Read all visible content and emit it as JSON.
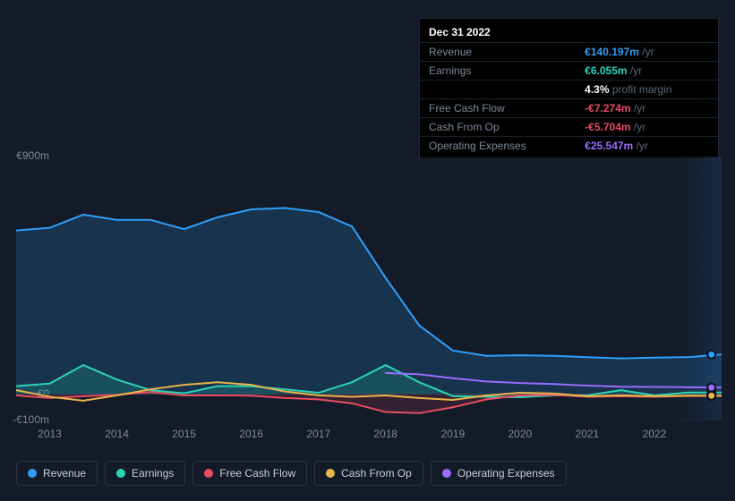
{
  "tooltip": {
    "date": "Dec 31 2022",
    "rows": [
      {
        "label": "Revenue",
        "value": "€140.197m",
        "color": "#2f9ffa",
        "unit": "/yr"
      },
      {
        "label": "Earnings",
        "value": "€6.055m",
        "color": "#2bd4b5",
        "unit": "/yr"
      },
      {
        "label": "",
        "value": "4.3%",
        "color": "#ffffff",
        "unit": "profit margin"
      },
      {
        "label": "Free Cash Flow",
        "value": "-€7.274m",
        "color": "#e84d63",
        "unit": "/yr"
      },
      {
        "label": "Cash From Op",
        "value": "-€5.704m",
        "color": "#e84d63",
        "unit": "/yr"
      },
      {
        "label": "Operating Expenses",
        "value": "€25.547m",
        "color": "#9a6cff",
        "unit": "/yr"
      }
    ]
  },
  "chart": {
    "type": "area-line",
    "background_color": "#131b28",
    "axis_color": "#1e2a3a",
    "text_color": "#7d8a9a",
    "y": {
      "min": -100,
      "max": 900,
      "labels": [
        {
          "v": 900,
          "text": "€900m"
        },
        {
          "v": 0,
          "text": "€0"
        },
        {
          "v": -100,
          "text": "-€100m"
        }
      ]
    },
    "x": {
      "min": 2012.5,
      "max": 2023,
      "ticks": [
        2013,
        2014,
        2015,
        2016,
        2017,
        2018,
        2019,
        2020,
        2021,
        2022
      ]
    },
    "marker_x": 2022.85,
    "series": [
      {
        "name": "Revenue",
        "color": "#2f9ffa",
        "fill_opacity": 0.18,
        "fill_to_zero": true,
        "points": [
          [
            2012.5,
            620
          ],
          [
            2013,
            630
          ],
          [
            2013.5,
            680
          ],
          [
            2014,
            660
          ],
          [
            2014.5,
            660
          ],
          [
            2015,
            625
          ],
          [
            2015.5,
            670
          ],
          [
            2016,
            700
          ],
          [
            2016.5,
            705
          ],
          [
            2017,
            690
          ],
          [
            2017.5,
            635
          ],
          [
            2018,
            440
          ],
          [
            2018.5,
            260
          ],
          [
            2019,
            165
          ],
          [
            2019.5,
            145
          ],
          [
            2020,
            147
          ],
          [
            2020.5,
            145
          ],
          [
            2021,
            140
          ],
          [
            2021.5,
            135
          ],
          [
            2022,
            138
          ],
          [
            2022.5,
            140
          ],
          [
            2023,
            150
          ]
        ]
      },
      {
        "name": "Earnings",
        "color": "#2bd4b5",
        "fill_opacity": 0.18,
        "fill_to_zero": true,
        "points": [
          [
            2012.5,
            30
          ],
          [
            2013,
            40
          ],
          [
            2013.5,
            110
          ],
          [
            2014,
            55
          ],
          [
            2014.5,
            15
          ],
          [
            2015,
            3
          ],
          [
            2015.5,
            30
          ],
          [
            2016,
            30
          ],
          [
            2016.5,
            18
          ],
          [
            2017,
            5
          ],
          [
            2017.5,
            45
          ],
          [
            2018,
            110
          ],
          [
            2018.5,
            45
          ],
          [
            2019,
            -8
          ],
          [
            2019.5,
            -10
          ],
          [
            2020,
            -12
          ],
          [
            2020.5,
            -5
          ],
          [
            2021,
            -5
          ],
          [
            2021.5,
            15
          ],
          [
            2022,
            -5
          ],
          [
            2022.5,
            6
          ],
          [
            2023,
            6
          ]
        ]
      },
      {
        "name": "Free Cash Flow",
        "color": "#e84d63",
        "fill_opacity": 0.15,
        "fill_to_zero": true,
        "points": [
          [
            2012.5,
            -5
          ],
          [
            2013,
            -15
          ],
          [
            2013.5,
            -8
          ],
          [
            2014,
            -3
          ],
          [
            2014.5,
            8
          ],
          [
            2015,
            -5
          ],
          [
            2015.5,
            -5
          ],
          [
            2016,
            -6
          ],
          [
            2016.5,
            -15
          ],
          [
            2017,
            -20
          ],
          [
            2017.5,
            -35
          ],
          [
            2018,
            -68
          ],
          [
            2018.5,
            -72
          ],
          [
            2019,
            -50
          ],
          [
            2019.5,
            -20
          ],
          [
            2020,
            -5
          ],
          [
            2020.5,
            -3
          ],
          [
            2021,
            -10
          ],
          [
            2021.5,
            -8
          ],
          [
            2022,
            -10
          ],
          [
            2022.5,
            -7
          ],
          [
            2023,
            -7
          ]
        ]
      },
      {
        "name": "Cash From Op",
        "color": "#eab54a",
        "fill_opacity": 0.0,
        "fill_to_zero": false,
        "points": [
          [
            2012.5,
            15
          ],
          [
            2013,
            -10
          ],
          [
            2013.5,
            -25
          ],
          [
            2014,
            -5
          ],
          [
            2014.5,
            18
          ],
          [
            2015,
            35
          ],
          [
            2015.5,
            45
          ],
          [
            2016,
            35
          ],
          [
            2016.5,
            10
          ],
          [
            2017,
            -5
          ],
          [
            2017.5,
            -10
          ],
          [
            2018,
            -5
          ],
          [
            2018.5,
            -15
          ],
          [
            2019,
            -22
          ],
          [
            2019.5,
            -5
          ],
          [
            2020,
            5
          ],
          [
            2020.5,
            2
          ],
          [
            2021,
            -8
          ],
          [
            2021.5,
            -5
          ],
          [
            2022,
            -8
          ],
          [
            2022.5,
            -6
          ],
          [
            2023,
            -6
          ]
        ]
      },
      {
        "name": "Operating Expenses",
        "color": "#9a6cff",
        "fill_opacity": 0.0,
        "fill_to_zero": false,
        "points": [
          [
            2018,
            80
          ],
          [
            2018.5,
            75
          ],
          [
            2019,
            60
          ],
          [
            2019.5,
            48
          ],
          [
            2020,
            42
          ],
          [
            2020.5,
            38
          ],
          [
            2021,
            32
          ],
          [
            2021.5,
            28
          ],
          [
            2022,
            27
          ],
          [
            2022.5,
            26
          ],
          [
            2023,
            25
          ]
        ]
      }
    ],
    "forecast_band_start_x": 2022.4
  },
  "legend": [
    {
      "label": "Revenue",
      "color": "#2f9ffa"
    },
    {
      "label": "Earnings",
      "color": "#2bd4b5"
    },
    {
      "label": "Free Cash Flow",
      "color": "#e84d63"
    },
    {
      "label": "Cash From Op",
      "color": "#eab54a"
    },
    {
      "label": "Operating Expenses",
      "color": "#9a6cff"
    }
  ]
}
